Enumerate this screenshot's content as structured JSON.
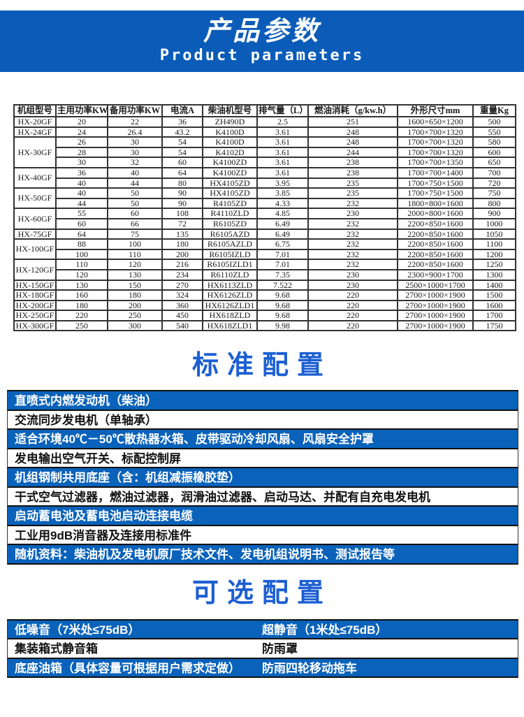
{
  "banner": {
    "title": "产品参数",
    "subtitle": "Product parameters"
  },
  "table": {
    "headers": [
      "机组型号",
      "主用功率KW",
      "备用功率KW",
      "电流A",
      "柴油机型号",
      "排气量（L）",
      "燃油消耗（g/kw.h）",
      "外形尺寸mm",
      "重量Kg"
    ],
    "rows": [
      {
        "model": "HX-20GF",
        "span": 1,
        "cells": [
          "20",
          "22",
          "36",
          "ZH490D",
          "2.5",
          "251",
          "1600×650×1200",
          "500"
        ]
      },
      {
        "model": "HX-24GF",
        "span": 1,
        "cells": [
          "24",
          "26.4",
          "43.2",
          "K4100D",
          "3.61",
          "248",
          "1700×700×1320",
          "550"
        ]
      },
      {
        "model": "HX-30GF",
        "span": 3,
        "cells": [
          "26",
          "30",
          "54",
          "K4100D",
          "3.61",
          "248",
          "1700×700×1320",
          "580"
        ]
      },
      {
        "cells": [
          "28",
          "30",
          "54",
          "K4102D",
          "3.61",
          "244",
          "1700×700×1320",
          "600"
        ]
      },
      {
        "cells": [
          "30",
          "32",
          "60",
          "K4100ZD",
          "3.61",
          "238",
          "1700×700×1350",
          "650"
        ]
      },
      {
        "model": "HX-40GF",
        "span": 2,
        "cells": [
          "36",
          "40",
          "64",
          "K4100ZD",
          "3.61",
          "238",
          "1700×700×1400",
          "700"
        ]
      },
      {
        "cells": [
          "40",
          "44",
          "80",
          "HX4105ZD",
          "3.95",
          "235",
          "1700×750×1500",
          "720"
        ]
      },
      {
        "model": "HX-50GF",
        "span": 2,
        "cells": [
          "40",
          "50",
          "90",
          "HX4105ZD",
          "3.85",
          "235",
          "1700×750×1500",
          "750"
        ]
      },
      {
        "cells": [
          "44",
          "50",
          "90",
          "R4105ZD",
          "4.33",
          "232",
          "1800×800×1600",
          "800"
        ]
      },
      {
        "model": "HX-60GF",
        "span": 2,
        "cells": [
          "55",
          "60",
          "108",
          "R4110ZLD",
          "4.85",
          "230",
          "2000×800×1600",
          "900"
        ]
      },
      {
        "cells": [
          "60",
          "66",
          "72",
          "R6105ZD",
          "6.49",
          "232",
          "2200×850×1600",
          "1000"
        ]
      },
      {
        "model": "HX-75GF",
        "span": 1,
        "cells": [
          "64",
          "75",
          "135",
          "R6105AZD",
          "6.49",
          "232",
          "2200×850×1600",
          "1050"
        ]
      },
      {
        "model": "HX-100GF",
        "span": 2,
        "cells": [
          "88",
          "100",
          "180",
          "R6105AZLD",
          "6.75",
          "232",
          "2200×850×1600",
          "1100"
        ]
      },
      {
        "cells": [
          "100",
          "110",
          "200",
          "R6105IZLD",
          "7.01",
          "232",
          "2200×850×1600",
          "1200"
        ]
      },
      {
        "model": "HX-120GF",
        "span": 2,
        "cells": [
          "110",
          "120",
          "216",
          "R6105IZLD1",
          "7.01",
          "232",
          "2200×850×1600",
          "1250"
        ]
      },
      {
        "cells": [
          "120",
          "130",
          "234",
          "R6110ZLD",
          "7.35",
          "230",
          "2300×900×1700",
          "1300"
        ]
      },
      {
        "model": "HX-150GF",
        "span": 1,
        "cells": [
          "130",
          "150",
          "270",
          "HX6113ZLD",
          "7.522",
          "230",
          "2500×1000×1700",
          "1400"
        ]
      },
      {
        "model": "HX-180GF",
        "span": 1,
        "cells": [
          "160",
          "180",
          "324",
          "HX6126ZLD",
          "9.68",
          "220",
          "2700×1000×1900",
          "1500"
        ]
      },
      {
        "model": "HX-200GF",
        "span": 1,
        "cells": [
          "180",
          "200",
          "360",
          "HX6126ZLD1",
          "9.68",
          "220",
          "2700×1000×1900",
          "1600"
        ]
      },
      {
        "model": "HX-250GF",
        "span": 1,
        "cells": [
          "220",
          "250",
          "450",
          "HX618ZLD",
          "9.68",
          "220",
          "2700×1000×1900",
          "1700"
        ]
      },
      {
        "model": "HX-300GF",
        "span": 1,
        "cells": [
          "250",
          "300",
          "540",
          "HX618ZLD1",
          "9.98",
          "220",
          "2700×1000×1900",
          "1750"
        ]
      }
    ]
  },
  "standard": {
    "title": "标准配置",
    "items": [
      "直喷式内燃发动机（柴油）",
      "交流同步发电机（单轴承）",
      "适合环境40℃－50℃散热器水箱、皮带驱动冷却风扇、风扇安全护罩",
      "发电输出空气开关、标配控制屏",
      "机组钢制共用底座（含：机组减振橡胶垫）",
      "干式空气过滤器，燃油过滤器，润滑油过滤器、启动马达、并配有自充电发电机",
      "启动蓄电池及蓄电池启动连接电缆",
      "工业用9dB消音器及连接用标准件",
      "随机资料：柴油机及发电机原厂技术文件、发电机组说明书、测试报告等"
    ]
  },
  "optional": {
    "title": "可选配置",
    "rows": [
      {
        "left": "低噪音（7米处≤75dB）",
        "right": "超静音（1米处≤75dB）"
      },
      {
        "left": "集装箱式静音箱",
        "right": "防雨罩"
      },
      {
        "left": "底座油箱（具体容量可根据用户需求定做）",
        "right": "防雨四轮移动拖车"
      }
    ]
  },
  "colors": {
    "banner_blue": "#0b5cb8",
    "row_blue": "#0a62ba",
    "heading_blue": "#1d5fd2",
    "grid": "#333333"
  }
}
